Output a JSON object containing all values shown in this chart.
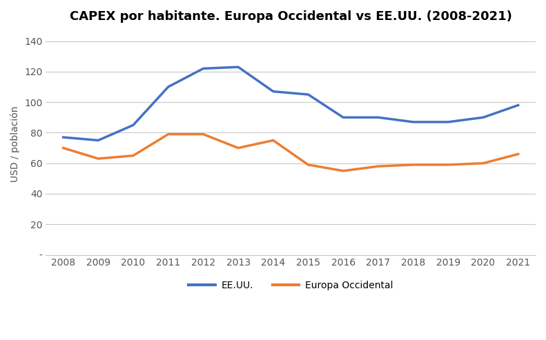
{
  "title": "CAPEX por habitante. Europa Occidental vs EE.UU. (2008-2021)",
  "ylabel": "USD / población",
  "years": [
    2008,
    2009,
    2010,
    2011,
    2012,
    2013,
    2014,
    2015,
    2016,
    2017,
    2018,
    2019,
    2020,
    2021
  ],
  "eeuu": [
    77,
    75,
    85,
    110,
    122,
    123,
    107,
    105,
    90,
    90,
    87,
    87,
    90,
    98
  ],
  "europa": [
    70,
    63,
    65,
    79,
    79,
    70,
    75,
    59,
    55,
    58,
    59,
    59,
    60,
    66
  ],
  "eeuu_color": "#4472C4",
  "europa_color": "#ED7D31",
  "line_width": 2.5,
  "ylim_min": 0,
  "ylim_max": 145,
  "yticks": [
    0,
    20,
    40,
    60,
    80,
    100,
    120,
    140
  ],
  "ytick_labels": [
    "-",
    "20",
    "40",
    "60",
    "80",
    "100",
    "120",
    "140"
  ],
  "background_color": "#ffffff",
  "grid_color": "#c8c8c8",
  "title_fontsize": 13,
  "title_fontweight": "bold",
  "legend_eeuu": "EE.UU.",
  "legend_europa": "Europa Occidental",
  "tick_fontsize": 10,
  "ylabel_fontsize": 10
}
